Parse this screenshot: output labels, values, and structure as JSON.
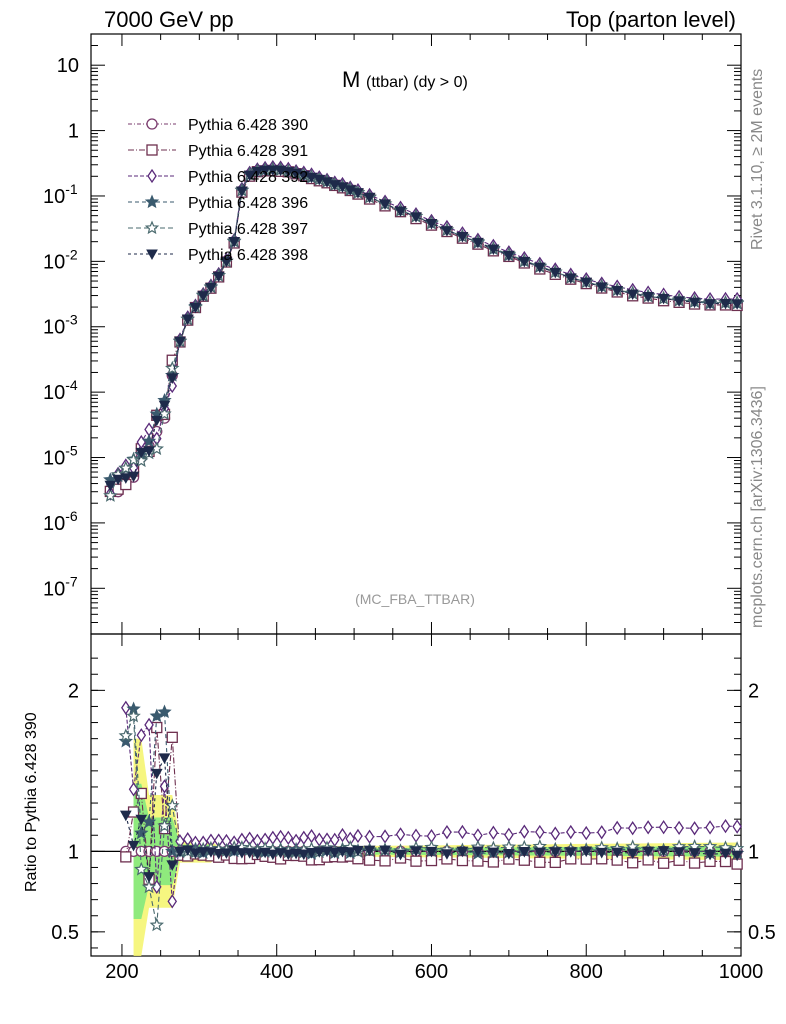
{
  "header": {
    "left_title": "7000 GeV pp",
    "right_title": "Top (parton level)"
  },
  "side_labels": {
    "rivet": "Rivet 3.1.10, ≥ 2M events",
    "mcplots": "mcplots.cern.ch [arXiv:1306.3436]"
  },
  "chart_data": {
    "type": "line",
    "title_main": "M",
    "title_sub": "(ttbar) (dy > 0)",
    "watermark": "(MC_FBA_TTBAR)",
    "xlabel": "",
    "ylabel_ratio": "Ratio to Pythia 6.428 390",
    "xlim": [
      160,
      1000
    ],
    "ylim_main": [
      2e-08,
      30
    ],
    "ylim_ratio": [
      0.35,
      2.35
    ],
    "y_scale_main": "log",
    "x_ticks": [
      "200",
      "400",
      "600",
      "800",
      "1000"
    ],
    "y_ticks_main": [
      "10",
      "1",
      "10^-1",
      "10^-2",
      "10^-3",
      "10^-4",
      "10^-5",
      "10^-6",
      "10^-7"
    ],
    "y_ticks_ratio": [
      "2",
      "1",
      "0.5"
    ],
    "legend_position": "top-left",
    "series": [
      {
        "name": "Pythia 6.428 390",
        "color": "#7a3b6d",
        "marker": "circle-open",
        "dash": "4,2,1,2",
        "offset": 0.0,
        "mult": 1.0
      },
      {
        "name": "Pythia 6.428 391",
        "color": "#6e2f4f",
        "marker": "square-open",
        "dash": "6,2,1,2",
        "offset": 0.0,
        "mult": 0.93
      },
      {
        "name": "Pythia 6.428 392",
        "color": "#5a2a7a",
        "marker": "diamond-open",
        "dash": "4,2",
        "offset": 0.0,
        "mult": 1.15
      },
      {
        "name": "Pythia 6.428 396",
        "color": "#3a5a6e",
        "marker": "star-filled",
        "dash": "4,3",
        "offset": 0.0,
        "mult": 1.0
      },
      {
        "name": "Pythia 6.428 397",
        "color": "#4a6a6e",
        "marker": "star-open",
        "dash": "5,3",
        "offset": 0.0,
        "mult": 1.02
      },
      {
        "name": "Pythia 6.428 398",
        "color": "#1e2a4a",
        "marker": "triangle-down-filled",
        "dash": "3,3",
        "offset": 0.0,
        "mult": 0.99
      }
    ],
    "reference_shape": {
      "x": [
        185,
        195,
        205,
        215,
        225,
        235,
        245,
        255,
        265,
        275,
        285,
        295,
        305,
        315,
        325,
        335,
        345,
        355,
        365,
        375,
        385,
        395,
        405,
        415,
        425,
        435,
        445,
        455,
        465,
        475,
        485,
        495,
        505,
        520,
        540,
        560,
        580,
        600,
        620,
        640,
        660,
        680,
        700,
        720,
        740,
        760,
        780,
        800,
        820,
        840,
        860,
        880,
        900,
        920,
        940,
        960,
        980,
        995
      ],
      "y": [
        3e-06,
        3e-06,
        4e-06,
        5e-06,
        1e-05,
        1.5e-05,
        2.5e-05,
        4e-05,
        0.00018,
        0.0006,
        0.0013,
        0.002,
        0.003,
        0.004,
        0.006,
        0.01,
        0.02,
        0.12,
        0.21,
        0.24,
        0.25,
        0.255,
        0.25,
        0.24,
        0.225,
        0.21,
        0.195,
        0.18,
        0.165,
        0.15,
        0.138,
        0.125,
        0.112,
        0.095,
        0.075,
        0.06,
        0.048,
        0.038,
        0.03,
        0.024,
        0.0195,
        0.0155,
        0.0125,
        0.01,
        0.0082,
        0.0068,
        0.0056,
        0.0048,
        0.0041,
        0.0036,
        0.0032,
        0.0029,
        0.0027,
        0.0025,
        0.0024,
        0.0023,
        0.0023,
        0.0023
      ]
    }
  }
}
